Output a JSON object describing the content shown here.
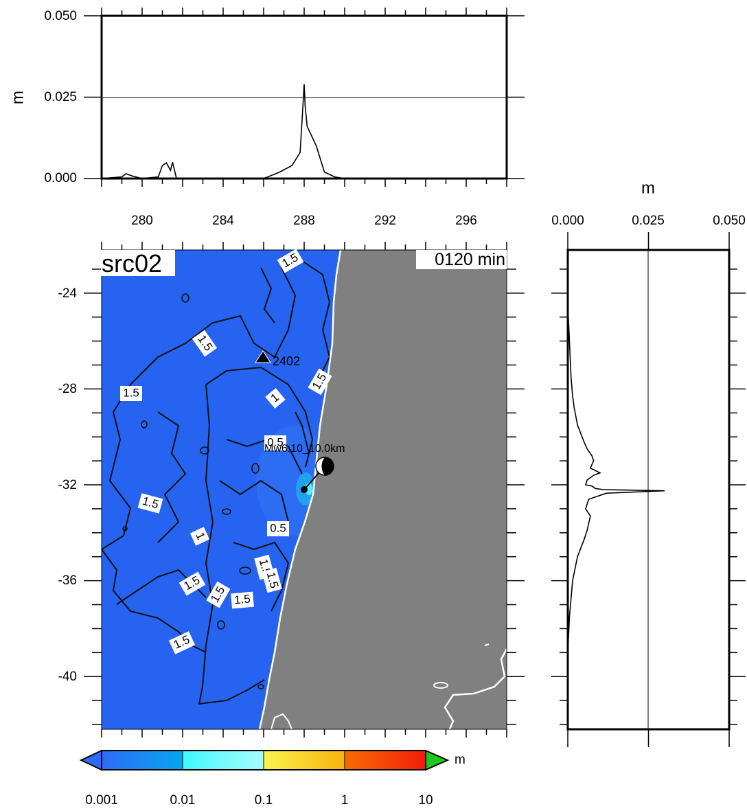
{
  "top_panel": {
    "unit_label": "m",
    "y_ticks": [
      "0.000",
      "0.025",
      "0.050"
    ],
    "x_ticks": [
      "280",
      "284",
      "288",
      "292",
      "296"
    ],
    "ylim": [
      0,
      0.05
    ],
    "xlim": [
      278,
      298
    ]
  },
  "right_panel": {
    "unit_label": "m",
    "x_ticks": [
      "0.000",
      "0.025",
      "0.050"
    ],
    "xlim": [
      0,
      0.05
    ]
  },
  "map": {
    "source_label": "src02",
    "time_label": "0120 min",
    "lat_ticks": [
      "-24",
      "-28",
      "-32",
      "-36",
      "-40"
    ],
    "station_label": "2402",
    "quake_label": "Mw6.10_10.0km",
    "contour_labels": [
      "1.5",
      "1.5",
      "1.5",
      "1.5",
      "1",
      "0.5",
      "1.5",
      "1",
      "0.5",
      "1.5",
      "1.5",
      "1.5",
      "1.5",
      "1.5",
      "1.5"
    ],
    "colors": {
      "ocean": "#2563f0",
      "land": "#808080",
      "coast": "#ffffff"
    }
  },
  "colorbar": {
    "unit_label": "m",
    "tick_labels": [
      "0.001",
      "0.01",
      "0.1",
      "1",
      "10"
    ],
    "colors": [
      "#2f6cf6",
      "#05a6f0",
      "#3ff8ff",
      "#a8fcfc",
      "#fbf34f",
      "#f7b40d",
      "#f76b06",
      "#f21d08",
      "#1ec91e"
    ]
  },
  "chart_data": [
    {
      "type": "line",
      "title": "",
      "xlabel": "",
      "ylabel": "m",
      "xlim": [
        278,
        298
      ],
      "ylim": [
        0,
        0.05
      ],
      "series": [
        {
          "x": [
            278,
            279,
            279.2,
            279.5,
            280,
            280.8,
            281.0,
            281.2,
            281.4,
            281.5,
            281.7,
            283,
            286,
            286.8,
            287.4,
            287.8,
            287.9,
            288.0,
            288.05,
            288.15,
            288.3,
            288.6,
            289.0,
            289.5,
            290,
            298
          ],
          "y": [
            0,
            0.0005,
            0.0015,
            0.0008,
            0,
            0.0005,
            0.004,
            0.0048,
            0.0025,
            0.005,
            0,
            0,
            0,
            0.002,
            0.004,
            0.008,
            0.018,
            0.029,
            0.022,
            0.016,
            0.014,
            0.01,
            0.002,
            0.0005,
            0,
            0
          ]
        }
      ]
    },
    {
      "type": "line",
      "title": "",
      "xlabel": "m",
      "ylabel": "",
      "xlim": [
        0,
        0.05
      ],
      "ylim": [
        -42.2,
        -22.2
      ],
      "series": [
        {
          "x": [
            0,
            0.0005,
            0.001,
            0.0015,
            0.002,
            0.003,
            0.005,
            0.006,
            0.0075,
            0.008,
            0.007,
            0.01,
            0.008,
            0.006,
            0.0055,
            0.0075,
            0.0085,
            0.011,
            0.03,
            0.012,
            0.0065,
            0.0055,
            0.007,
            0.0065,
            0.006,
            0.005,
            0.003,
            0.0015,
            0.0005,
            0
          ],
          "y": [
            -24.5,
            -26.0,
            -27.5,
            -28.3,
            -28.8,
            -29.5,
            -30.2,
            -30.5,
            -30.8,
            -31.0,
            -31.3,
            -31.5,
            -31.6,
            -31.8,
            -32.0,
            -32.05,
            -32.15,
            -32.2,
            -32.25,
            -32.35,
            -32.6,
            -33.0,
            -33.3,
            -33.6,
            -33.9,
            -34.3,
            -35.0,
            -36.0,
            -37.5,
            -39
          ]
        }
      ]
    }
  ]
}
